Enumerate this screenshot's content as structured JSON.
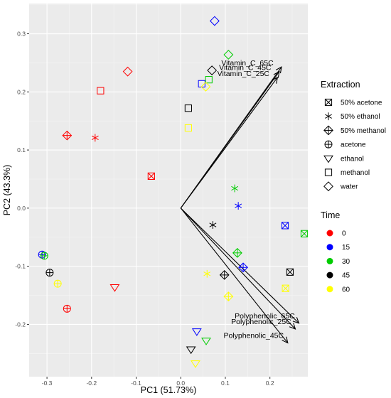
{
  "chart_data": {
    "type": "scatter",
    "subtype": "pca-biplot",
    "title": "",
    "xlabel": "PC1 (51.73%)",
    "ylabel": "PC2 (43.3%)",
    "xlim": [
      -0.34,
      0.285
    ],
    "ylim": [
      -0.29,
      0.352
    ],
    "x_ticks": [
      -0.3,
      -0.2,
      -0.1,
      0.0,
      0.1,
      0.2
    ],
    "y_ticks": [
      -0.2,
      -0.1,
      0.0,
      0.1,
      0.2,
      0.3
    ],
    "x_tick_labels": [
      "-0.3",
      "-0.2",
      "-0.1",
      "0.0",
      "0.1",
      "0.2"
    ],
    "y_tick_labels": [
      "-0.2",
      "-0.1",
      "0.0",
      "0.1",
      "0.2",
      "0.3"
    ],
    "grid": true,
    "background": "#ebebeb",
    "legend_placement": "right",
    "legends": {
      "shape": {
        "title": "Extraction",
        "entries": [
          {
            "label": "50% acetone",
            "symbol": "square-x"
          },
          {
            "label": "50% ethanol",
            "symbol": "asterisk"
          },
          {
            "label": "50% methanol",
            "symbol": "diamond-plus"
          },
          {
            "label": "acetone",
            "symbol": "circle-plus"
          },
          {
            "label": "ethanol",
            "symbol": "triangle-down"
          },
          {
            "label": "methanol",
            "symbol": "square"
          },
          {
            "label": "water",
            "symbol": "diamond"
          }
        ]
      },
      "color": {
        "title": "Time",
        "entries": [
          {
            "label": "0",
            "color": "#ff0000"
          },
          {
            "label": "15",
            "color": "#0000ff"
          },
          {
            "label": "30",
            "color": "#00cc00"
          },
          {
            "label": "45",
            "color": "#000000"
          },
          {
            "label": "60",
            "color": "#ffff00"
          }
        ]
      }
    },
    "points": [
      {
        "x": -0.066,
        "y": 0.055,
        "extraction": "50% acetone",
        "time": "0"
      },
      {
        "x": 0.234,
        "y": -0.03,
        "extraction": "50% acetone",
        "time": "15"
      },
      {
        "x": 0.277,
        "y": -0.044,
        "extraction": "50% acetone",
        "time": "30"
      },
      {
        "x": 0.245,
        "y": -0.11,
        "extraction": "50% acetone",
        "time": "45"
      },
      {
        "x": 0.235,
        "y": -0.138,
        "extraction": "50% acetone",
        "time": "60"
      },
      {
        "x": -0.192,
        "y": 0.121,
        "extraction": "50% ethanol",
        "time": "0"
      },
      {
        "x": 0.129,
        "y": 0.004,
        "extraction": "50% ethanol",
        "time": "15"
      },
      {
        "x": 0.121,
        "y": 0.034,
        "extraction": "50% ethanol",
        "time": "30"
      },
      {
        "x": 0.072,
        "y": -0.029,
        "extraction": "50% ethanol",
        "time": "45"
      },
      {
        "x": 0.059,
        "y": -0.113,
        "extraction": "50% ethanol",
        "time": "60"
      },
      {
        "x": -0.255,
        "y": 0.125,
        "extraction": "50% methanol",
        "time": "0"
      },
      {
        "x": 0.14,
        "y": -0.102,
        "extraction": "50% methanol",
        "time": "15"
      },
      {
        "x": 0.127,
        "y": -0.077,
        "extraction": "50% methanol",
        "time": "30"
      },
      {
        "x": 0.098,
        "y": -0.115,
        "extraction": "50% methanol",
        "time": "45"
      },
      {
        "x": 0.107,
        "y": -0.152,
        "extraction": "50% methanol",
        "time": "60"
      },
      {
        "x": -0.255,
        "y": -0.173,
        "extraction": "acetone",
        "time": "0"
      },
      {
        "x": -0.311,
        "y": -0.08,
        "extraction": "acetone",
        "time": "15"
      },
      {
        "x": -0.306,
        "y": -0.082,
        "extraction": "acetone",
        "time": "30"
      },
      {
        "x": -0.294,
        "y": -0.111,
        "extraction": "acetone",
        "time": "45"
      },
      {
        "x": -0.276,
        "y": -0.13,
        "extraction": "acetone",
        "time": "60"
      },
      {
        "x": -0.148,
        "y": -0.136,
        "extraction": "ethanol",
        "time": "0"
      },
      {
        "x": 0.036,
        "y": -0.212,
        "extraction": "ethanol",
        "time": "15"
      },
      {
        "x": 0.057,
        "y": -0.228,
        "extraction": "ethanol",
        "time": "30"
      },
      {
        "x": 0.023,
        "y": -0.243,
        "extraction": "ethanol",
        "time": "45"
      },
      {
        "x": 0.033,
        "y": -0.267,
        "extraction": "ethanol",
        "time": "60"
      },
      {
        "x": -0.18,
        "y": 0.202,
        "extraction": "methanol",
        "time": "0"
      },
      {
        "x": 0.047,
        "y": 0.214,
        "extraction": "methanol",
        "time": "15"
      },
      {
        "x": 0.063,
        "y": 0.221,
        "extraction": "methanol",
        "time": "30"
      },
      {
        "x": 0.017,
        "y": 0.172,
        "extraction": "methanol",
        "time": "45"
      },
      {
        "x": 0.017,
        "y": 0.138,
        "extraction": "methanol",
        "time": "60"
      },
      {
        "x": -0.119,
        "y": 0.235,
        "extraction": "water",
        "time": "0"
      },
      {
        "x": 0.076,
        "y": 0.322,
        "extraction": "water",
        "time": "15"
      },
      {
        "x": 0.107,
        "y": 0.264,
        "extraction": "water",
        "time": "30"
      },
      {
        "x": 0.07,
        "y": 0.237,
        "extraction": "water",
        "time": "45"
      },
      {
        "x": 0.056,
        "y": 0.209,
        "extraction": "water",
        "time": "60"
      }
    ],
    "loadings": [
      {
        "label": "Vitamin_C_65C",
        "x": 0.226,
        "y": 0.243
      },
      {
        "label": "Vitamin_C_45C",
        "x": 0.221,
        "y": 0.235
      },
      {
        "label": "Vitamin_C_25C",
        "x": 0.217,
        "y": 0.225
      },
      {
        "label": "Polyphenolic_65C",
        "x": 0.265,
        "y": -0.198
      },
      {
        "label": "Polyphenolic_25C",
        "x": 0.257,
        "y": -0.208
      },
      {
        "label": "Polyphenolic_45C",
        "x": 0.24,
        "y": -0.232
      }
    ]
  }
}
